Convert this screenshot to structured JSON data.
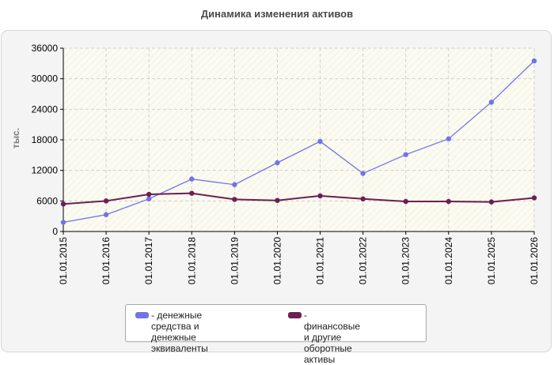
{
  "title": "Динамика изменения активов",
  "chart_data": {
    "type": "line",
    "title": "Динамика изменения активов",
    "ylabel": "тыс.",
    "xlabel": "",
    "x": [
      "01.01.2015",
      "01.01.2016",
      "01.01.2017",
      "01.01.2018",
      "01.01.2019",
      "01.01.2020",
      "01.01.2021",
      "01.01.2022",
      "01.01.2023",
      "01.01.2024",
      "01.01.2025",
      "01.01.2026"
    ],
    "ylim": [
      0,
      36000
    ],
    "yticks": [
      0,
      6000,
      12000,
      18000,
      24000,
      30000,
      36000
    ],
    "ytick_labels": [
      "0",
      "6000",
      "12000",
      "18000",
      "24000",
      "30000",
      "36000"
    ],
    "grid": true,
    "legend_position": "bottom",
    "series": [
      {
        "name": "денежные средства и денежные эквиваленты",
        "legend_text": "- денежные средства и\nденежные эквиваленты",
        "color": "#7373e6",
        "values": [
          1800,
          3300,
          6400,
          10300,
          9200,
          13500,
          17700,
          11400,
          15100,
          18200,
          25400,
          33500
        ]
      },
      {
        "name": "финансовые и другие оборотные активы",
        "legend_text": "- финансовые и другие\nоборотные активы",
        "color": "#6b1f52",
        "values": [
          5400,
          6000,
          7300,
          7500,
          6300,
          6100,
          7000,
          6400,
          5900,
          5900,
          5800,
          6600
        ]
      }
    ]
  }
}
